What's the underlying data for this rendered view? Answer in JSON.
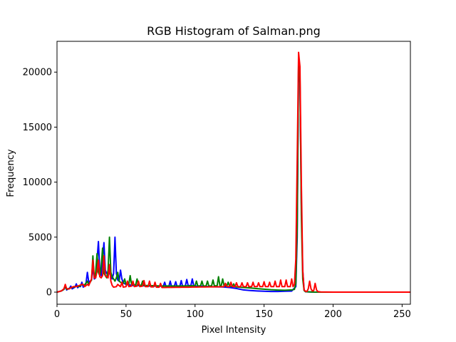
{
  "chart_data": {
    "type": "line",
    "title": "RGB Histogram of Salman.png",
    "xlabel": "Pixel Intensity",
    "ylabel": "Frequency",
    "xlim": [
      0,
      256
    ],
    "ylim": [
      -1100,
      22800
    ],
    "x_ticks": [
      "0",
      "50",
      "100",
      "150",
      "200",
      "250"
    ],
    "y_ticks": [
      "0",
      "5000",
      "10000",
      "15000",
      "20000"
    ],
    "grid": false,
    "legend": "none",
    "series": [
      {
        "color": "#0000ff",
        "points": [
          [
            0,
            0
          ],
          [
            3,
            100
          ],
          [
            5,
            250
          ],
          [
            6,
            500
          ],
          [
            7,
            200
          ],
          [
            9,
            350
          ],
          [
            10,
            550
          ],
          [
            11,
            300
          ],
          [
            13,
            450
          ],
          [
            14,
            750
          ],
          [
            15,
            400
          ],
          [
            16,
            550
          ],
          [
            17,
            500
          ],
          [
            18,
            900
          ],
          [
            19,
            450
          ],
          [
            21,
            800
          ],
          [
            22,
            1800
          ],
          [
            23,
            900
          ],
          [
            25,
            1100
          ],
          [
            26,
            2300
          ],
          [
            27,
            1200
          ],
          [
            28,
            1300
          ],
          [
            29,
            2900
          ],
          [
            30,
            4600
          ],
          [
            31,
            1900
          ],
          [
            32,
            1500
          ],
          [
            33,
            3000
          ],
          [
            34,
            4500
          ],
          [
            35,
            2000
          ],
          [
            36,
            1700
          ],
          [
            37,
            1600
          ],
          [
            38,
            1800
          ],
          [
            39,
            1400
          ],
          [
            40,
            1200
          ],
          [
            41,
            1700
          ],
          [
            42,
            5000
          ],
          [
            43,
            1700
          ],
          [
            44,
            1100
          ],
          [
            45,
            1000
          ],
          [
            46,
            2000
          ],
          [
            47,
            1200
          ],
          [
            48,
            850
          ],
          [
            50,
            700
          ],
          [
            55,
            600
          ],
          [
            60,
            600
          ],
          [
            65,
            560
          ],
          [
            70,
            550
          ],
          [
            75,
            540
          ],
          [
            77,
            550
          ],
          [
            78,
            900
          ],
          [
            79,
            500
          ],
          [
            81,
            500
          ],
          [
            82,
            1000
          ],
          [
            83,
            500
          ],
          [
            85,
            550
          ],
          [
            86,
            950
          ],
          [
            87,
            500
          ],
          [
            89,
            550
          ],
          [
            90,
            1050
          ],
          [
            91,
            500
          ],
          [
            93,
            600
          ],
          [
            94,
            1150
          ],
          [
            95,
            600
          ],
          [
            97,
            600
          ],
          [
            98,
            1200
          ],
          [
            99,
            600
          ],
          [
            100,
            550
          ],
          [
            105,
            550
          ],
          [
            110,
            500
          ],
          [
            115,
            480
          ],
          [
            120,
            470
          ],
          [
            125,
            420
          ],
          [
            130,
            330
          ],
          [
            135,
            200
          ],
          [
            140,
            150
          ],
          [
            145,
            110
          ],
          [
            150,
            80
          ],
          [
            155,
            60
          ],
          [
            160,
            60
          ],
          [
            165,
            80
          ],
          [
            170,
            100
          ],
          [
            173,
            500
          ],
          [
            174,
            5000
          ],
          [
            175,
            21000
          ],
          [
            176,
            19000
          ],
          [
            177,
            8000
          ],
          [
            178,
            2000
          ],
          [
            179,
            200
          ],
          [
            180,
            30
          ],
          [
            185,
            10
          ],
          [
            190,
            5
          ],
          [
            200,
            0
          ],
          [
            256,
            0
          ]
        ]
      },
      {
        "color": "#008000",
        "points": [
          [
            0,
            0
          ],
          [
            3,
            100
          ],
          [
            5,
            250
          ],
          [
            6,
            550
          ],
          [
            7,
            250
          ],
          [
            9,
            350
          ],
          [
            10,
            400
          ],
          [
            12,
            450
          ],
          [
            14,
            550
          ],
          [
            16,
            500
          ],
          [
            18,
            700
          ],
          [
            20,
            650
          ],
          [
            22,
            1000
          ],
          [
            23,
            700
          ],
          [
            25,
            1100
          ],
          [
            26,
            3300
          ],
          [
            27,
            1300
          ],
          [
            28,
            1800
          ],
          [
            29,
            3500
          ],
          [
            30,
            1800
          ],
          [
            31,
            1500
          ],
          [
            32,
            2300
          ],
          [
            33,
            4000
          ],
          [
            34,
            1700
          ],
          [
            35,
            1500
          ],
          [
            36,
            1300
          ],
          [
            37,
            2000
          ],
          [
            38,
            5000
          ],
          [
            39,
            1800
          ],
          [
            40,
            1400
          ],
          [
            41,
            1200
          ],
          [
            42,
            1000
          ],
          [
            43,
            1300
          ],
          [
            44,
            1800
          ],
          [
            45,
            1000
          ],
          [
            46,
            900
          ],
          [
            48,
            800
          ],
          [
            49,
            1200
          ],
          [
            50,
            700
          ],
          [
            52,
            700
          ],
          [
            53,
            1500
          ],
          [
            54,
            700
          ],
          [
            55,
            700
          ],
          [
            57,
            650
          ],
          [
            58,
            1200
          ],
          [
            59,
            650
          ],
          [
            61,
            600
          ],
          [
            62,
            1000
          ],
          [
            63,
            600
          ],
          [
            65,
            600
          ],
          [
            70,
            580
          ],
          [
            75,
            560
          ],
          [
            80,
            560
          ],
          [
            85,
            560
          ],
          [
            90,
            560
          ],
          [
            95,
            570
          ],
          [
            100,
            580
          ],
          [
            101,
            1000
          ],
          [
            102,
            550
          ],
          [
            104,
            580
          ],
          [
            105,
            1000
          ],
          [
            106,
            560
          ],
          [
            108,
            570
          ],
          [
            109,
            1000
          ],
          [
            110,
            550
          ],
          [
            112,
            580
          ],
          [
            113,
            1100
          ],
          [
            114,
            570
          ],
          [
            116,
            580
          ],
          [
            117,
            1400
          ],
          [
            118,
            600
          ],
          [
            119,
            600
          ],
          [
            120,
            1200
          ],
          [
            121,
            580
          ],
          [
            123,
            550
          ],
          [
            124,
            900
          ],
          [
            125,
            550
          ],
          [
            127,
            520
          ],
          [
            128,
            750
          ],
          [
            129,
            500
          ],
          [
            130,
            470
          ],
          [
            135,
            420
          ],
          [
            140,
            380
          ],
          [
            145,
            320
          ],
          [
            150,
            270
          ],
          [
            155,
            220
          ],
          [
            160,
            190
          ],
          [
            165,
            170
          ],
          [
            170,
            200
          ],
          [
            172,
            250
          ],
          [
            173,
            800
          ],
          [
            174,
            6000
          ],
          [
            175,
            21200
          ],
          [
            176,
            19500
          ],
          [
            177,
            7000
          ],
          [
            178,
            1200
          ],
          [
            179,
            150
          ],
          [
            180,
            40
          ],
          [
            185,
            10
          ],
          [
            190,
            5
          ],
          [
            200,
            0
          ],
          [
            256,
            0
          ]
        ]
      },
      {
        "color": "#ff0000",
        "points": [
          [
            0,
            0
          ],
          [
            3,
            100
          ],
          [
            5,
            300
          ],
          [
            6,
            700
          ],
          [
            7,
            300
          ],
          [
            9,
            300
          ],
          [
            10,
            400
          ],
          [
            12,
            500
          ],
          [
            14,
            500
          ],
          [
            16,
            600
          ],
          [
            18,
            700
          ],
          [
            19,
            700
          ],
          [
            20,
            500
          ],
          [
            22,
            700
          ],
          [
            23,
            600
          ],
          [
            24,
            900
          ],
          [
            25,
            1200
          ],
          [
            26,
            2900
          ],
          [
            27,
            1300
          ],
          [
            28,
            1300
          ],
          [
            29,
            1900
          ],
          [
            30,
            2900
          ],
          [
            31,
            1400
          ],
          [
            32,
            1300
          ],
          [
            33,
            1500
          ],
          [
            34,
            3300
          ],
          [
            35,
            1500
          ],
          [
            36,
            1400
          ],
          [
            37,
            1300
          ],
          [
            38,
            2500
          ],
          [
            39,
            1000
          ],
          [
            40,
            600
          ],
          [
            41,
            450
          ],
          [
            43,
            500
          ],
          [
            44,
            700
          ],
          [
            45,
            600
          ],
          [
            46,
            500
          ],
          [
            47,
            900
          ],
          [
            48,
            450
          ],
          [
            50,
            500
          ],
          [
            51,
            1000
          ],
          [
            52,
            500
          ],
          [
            54,
            550
          ],
          [
            55,
            1000
          ],
          [
            56,
            500
          ],
          [
            58,
            550
          ],
          [
            59,
            1000
          ],
          [
            60,
            500
          ],
          [
            62,
            550
          ],
          [
            63,
            1050
          ],
          [
            64,
            500
          ],
          [
            66,
            500
          ],
          [
            67,
            1000
          ],
          [
            68,
            480
          ],
          [
            70,
            480
          ],
          [
            71,
            900
          ],
          [
            72,
            450
          ],
          [
            74,
            450
          ],
          [
            75,
            800
          ],
          [
            76,
            420
          ],
          [
            78,
            420
          ],
          [
            80,
            430
          ],
          [
            83,
            430
          ],
          [
            86,
            440
          ],
          [
            89,
            440
          ],
          [
            92,
            450
          ],
          [
            95,
            450
          ],
          [
            98,
            460
          ],
          [
            101,
            460
          ],
          [
            104,
            470
          ],
          [
            107,
            470
          ],
          [
            110,
            480
          ],
          [
            113,
            480
          ],
          [
            116,
            490
          ],
          [
            119,
            490
          ],
          [
            121,
            500
          ],
          [
            122,
            800
          ],
          [
            123,
            500
          ],
          [
            125,
            500
          ],
          [
            126,
            900
          ],
          [
            127,
            500
          ],
          [
            129,
            500
          ],
          [
            130,
            850
          ],
          [
            131,
            500
          ],
          [
            133,
            500
          ],
          [
            134,
            850
          ],
          [
            135,
            500
          ],
          [
            137,
            500
          ],
          [
            138,
            850
          ],
          [
            139,
            500
          ],
          [
            141,
            500
          ],
          [
            142,
            900
          ],
          [
            143,
            500
          ],
          [
            145,
            500
          ],
          [
            146,
            850
          ],
          [
            147,
            500
          ],
          [
            149,
            500
          ],
          [
            150,
            950
          ],
          [
            151,
            500
          ],
          [
            153,
            500
          ],
          [
            154,
            900
          ],
          [
            155,
            500
          ],
          [
            157,
            500
          ],
          [
            158,
            1000
          ],
          [
            159,
            500
          ],
          [
            161,
            500
          ],
          [
            162,
            1100
          ],
          [
            163,
            500
          ],
          [
            165,
            500
          ],
          [
            166,
            1100
          ],
          [
            167,
            500
          ],
          [
            169,
            500
          ],
          [
            170,
            1200
          ],
          [
            171,
            500
          ],
          [
            172,
            700
          ],
          [
            173,
            3000
          ],
          [
            174,
            12000
          ],
          [
            175,
            21800
          ],
          [
            176,
            20500
          ],
          [
            177,
            10000
          ],
          [
            178,
            2000
          ],
          [
            179,
            200
          ],
          [
            180,
            80
          ],
          [
            181,
            60
          ],
          [
            182,
            300
          ],
          [
            183,
            1000
          ],
          [
            184,
            300
          ],
          [
            185,
            100
          ],
          [
            186,
            150
          ],
          [
            187,
            800
          ],
          [
            188,
            200
          ],
          [
            189,
            50
          ],
          [
            191,
            20
          ],
          [
            195,
            10
          ],
          [
            200,
            0
          ],
          [
            256,
            0
          ]
        ]
      }
    ]
  }
}
